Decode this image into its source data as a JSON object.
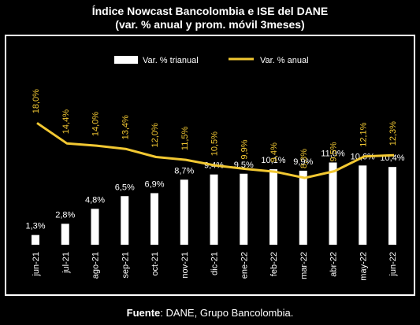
{
  "title_line1": "Índice Nowcast Bancolombia e ISE del DANE",
  "title_line2": "(var. % anual y prom. móvil 3meses)",
  "source_label": "Fuente",
  "source_text": ": DANE, Grupo Bancolombia.",
  "colors": {
    "bars": "#ffffff",
    "line": "#f2c832",
    "background": "#000000",
    "frame": "#ffffff"
  },
  "chart_data": {
    "type": "bar",
    "categories": [
      "jun-21",
      "jul-21",
      "ago-21",
      "sep-21",
      "oct-21",
      "nov-21",
      "dic-21",
      "ene-22",
      "feb-22",
      "mar-22",
      "abr-22",
      "may-22",
      "jun-22"
    ],
    "series": [
      {
        "name": "Var. % trianual",
        "type": "bar",
        "values": [
          1.3,
          2.8,
          4.8,
          6.5,
          6.9,
          8.7,
          9.4,
          9.5,
          10.1,
          9.9,
          11.0,
          10.6,
          10.4
        ],
        "labels": [
          "1,3%",
          "2,8%",
          "4,8%",
          "6,5%",
          "6,9%",
          "8,7%",
          "9,4%",
          "9,5%",
          "10,1%",
          "9,9%",
          "11,0%",
          "10,6%",
          "10,4%"
        ]
      },
      {
        "name": "Var. % anual",
        "type": "line",
        "values": [
          18.0,
          14.4,
          14.0,
          13.4,
          12.0,
          11.5,
          10.5,
          9.9,
          9.4,
          8.3,
          9.5,
          12.1,
          12.3
        ],
        "labels": [
          "18,0%",
          "14,4%",
          "14,0%",
          "13,4%",
          "12,0%",
          "11,5%",
          "10,5%",
          "9,9%",
          "9,4%",
          "8,3%",
          "9,5%",
          "12,1%",
          "12,3%"
        ]
      }
    ],
    "legend_position": "top-right",
    "grid": false
  }
}
